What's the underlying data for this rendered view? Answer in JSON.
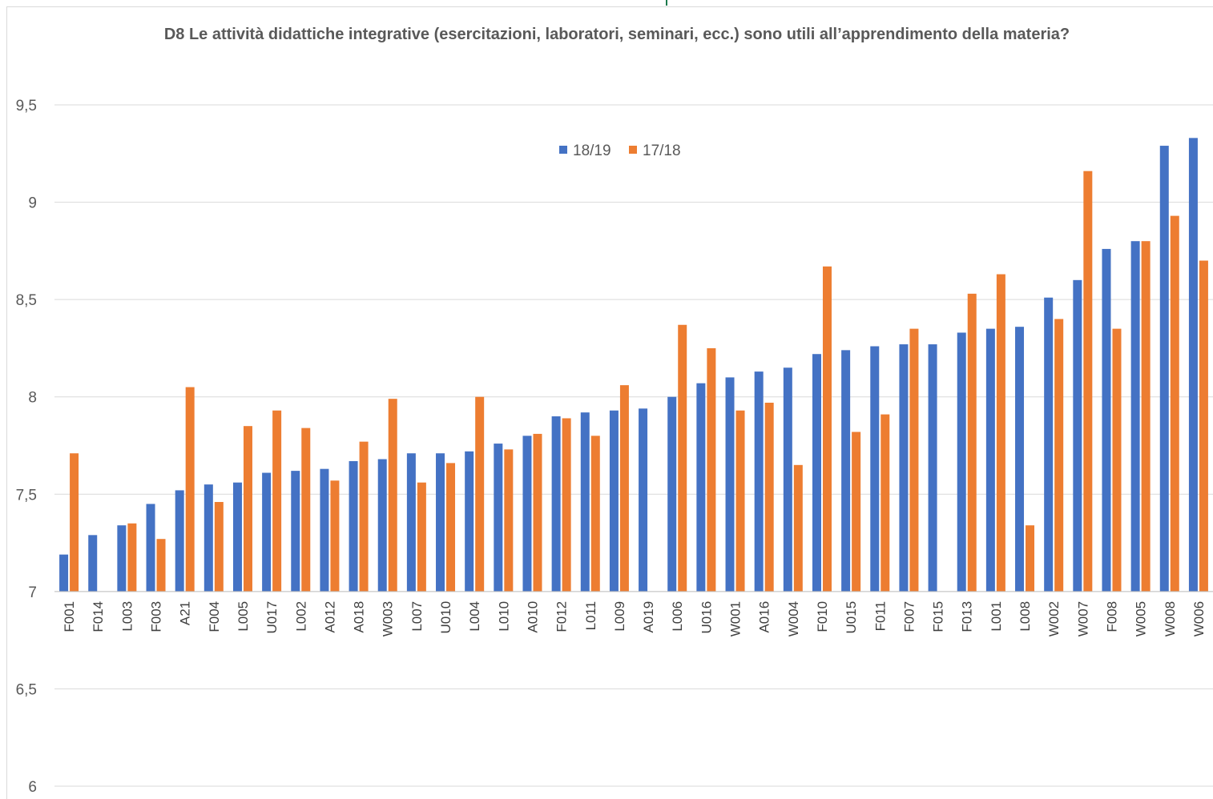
{
  "chart_data": {
    "type": "bar",
    "title": "D8 Le attività didattiche integrative (esercitazioni, laboratori, seminari, ecc.) sono utili all’apprendimento della materia?",
    "ylim": [
      6,
      9.5
    ],
    "ytick_labels": [
      "6",
      "6,5",
      "7",
      "7,5",
      "8",
      "8,5",
      "9",
      "9,5"
    ],
    "ytick_values": [
      6,
      6.5,
      7,
      7.5,
      8,
      8.5,
      9,
      9.5
    ],
    "bar_base": 7,
    "grid": true,
    "legend_position": "top-center",
    "categories": [
      "F001",
      "F014",
      "L003",
      "F003",
      "A21",
      "F004",
      "L005",
      "U017",
      "L002",
      "A012",
      "A018",
      "W003",
      "L007",
      "U010",
      "L004",
      "L010",
      "A010",
      "F012",
      "L011",
      "L009",
      "A019",
      "L006",
      "U016",
      "W001",
      "A016",
      "W004",
      "F010",
      "U015",
      "F011",
      "F007",
      "F015",
      "F013",
      "L001",
      "L008",
      "W002",
      "W007",
      "F008",
      "W005",
      "W008",
      "W006"
    ],
    "series": [
      {
        "name": "18/19",
        "color": "#4472c4",
        "values": [
          7.19,
          7.29,
          7.34,
          7.45,
          7.52,
          7.55,
          7.56,
          7.61,
          7.62,
          7.63,
          7.67,
          7.68,
          7.71,
          7.71,
          7.72,
          7.76,
          7.8,
          7.9,
          7.92,
          7.93,
          7.94,
          8.0,
          8.07,
          8.1,
          8.13,
          8.15,
          8.22,
          8.24,
          8.26,
          8.27,
          8.27,
          8.33,
          8.35,
          8.36,
          8.51,
          8.6,
          8.76,
          8.8,
          9.29,
          9.33
        ]
      },
      {
        "name": "17/18",
        "color": "#ed7d31",
        "values": [
          7.71,
          null,
          7.35,
          7.27,
          8.05,
          7.46,
          7.85,
          7.93,
          7.84,
          7.57,
          7.77,
          7.99,
          7.56,
          7.66,
          8.0,
          7.73,
          7.81,
          7.89,
          7.8,
          8.06,
          null,
          8.37,
          8.25,
          7.93,
          7.97,
          7.65,
          8.67,
          7.82,
          7.91,
          8.35,
          null,
          8.53,
          8.63,
          7.34,
          8.4,
          9.16,
          8.35,
          8.8,
          8.93,
          8.7
        ]
      }
    ]
  }
}
